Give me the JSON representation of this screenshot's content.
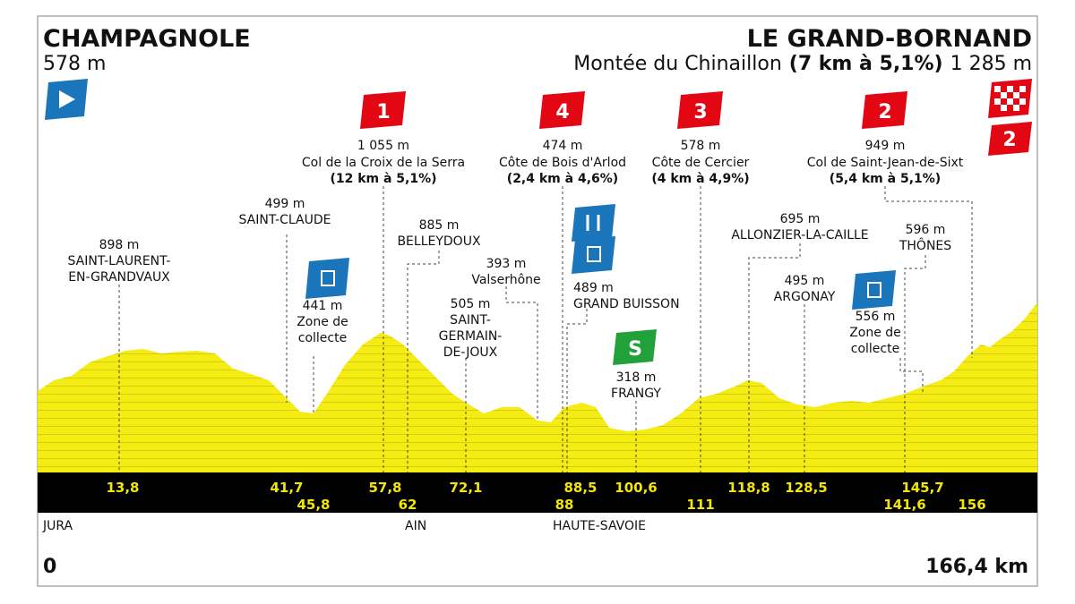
{
  "start": {
    "name": "CHAMPAGNOLE",
    "altitude": "578 m"
  },
  "finish": {
    "name": "LE GRAND-BORNAND",
    "climb_name": "Montée du Chinaillon",
    "climb_detail": "(7 km à 5,1%)",
    "altitude": "1 285 m",
    "category": "2"
  },
  "climbs": [
    {
      "category": "1",
      "altitude": "1 055 m",
      "name": "Col de la Croix de la Serra",
      "detail": "(12 km à 5,1%)"
    },
    {
      "category": "4",
      "altitude": "474 m",
      "name": "Côte de Bois d'Arlod",
      "detail": "(2,4 km à 4,6%)"
    },
    {
      "category": "3",
      "altitude": "578 m",
      "name": "Côte de Cercier",
      "detail": "(4 km à 4,9%)"
    },
    {
      "category": "2",
      "altitude": "949 m",
      "name": "Col de Saint-Jean-de-Sixt",
      "detail": "(5,4 km à 5,1%)"
    }
  ],
  "places": [
    {
      "altitude": "898 m",
      "lines": [
        "SAINT-LAURENT-",
        "EN-GRANDVAUX"
      ]
    },
    {
      "altitude": "499 m",
      "lines": [
        "SAINT-CLAUDE"
      ]
    },
    {
      "altitude": "441 m",
      "lines": [
        "Zone de",
        "collecte"
      ]
    },
    {
      "altitude": "885 m",
      "lines": [
        "BELLEYDOUX"
      ]
    },
    {
      "altitude": "505 m",
      "lines": [
        "SAINT-",
        "GERMAIN-",
        "DE-JOUX"
      ]
    },
    {
      "altitude": "393 m",
      "lines": [
        "Valserhône"
      ]
    },
    {
      "altitude": "489 m",
      "lines": [
        "GRAND BUISSON"
      ]
    },
    {
      "altitude": "318 m",
      "lines": [
        "FRANGY"
      ]
    },
    {
      "altitude": "695 m",
      "lines": [
        "ALLONZIER-LA-CAILLE"
      ]
    },
    {
      "altitude": "495 m",
      "lines": [
        "ARGONAY"
      ]
    },
    {
      "altitude": "556 m",
      "lines": [
        "Zone de",
        "collecte"
      ]
    },
    {
      "altitude": "596 m",
      "lines": [
        "THÔNES"
      ]
    }
  ],
  "km_top": [
    "13,8",
    "41,7",
    "57,8",
    "72,1",
    "88,5",
    "100,6",
    "118,8",
    "128,5",
    "145,7"
  ],
  "km_bottom": [
    "45,8",
    "62",
    "88",
    "111",
    "141,6",
    "156"
  ],
  "regions": [
    "JURA",
    "AIN",
    "HAUTE-SAVOIE"
  ],
  "distance_start": "0",
  "distance_end": "166,4 km"
}
